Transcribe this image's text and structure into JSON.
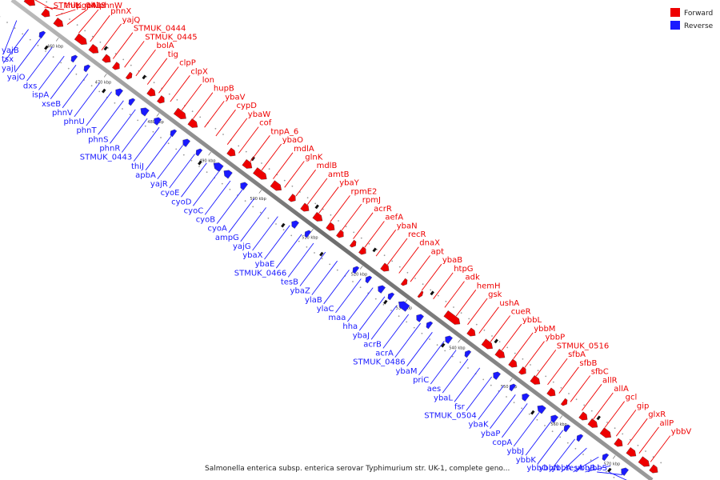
{
  "legend": {
    "forward_label": "Forward",
    "reverse_label": "Reverse"
  },
  "colors": {
    "forward": "#ee0000",
    "reverse": "#1a1aff",
    "backbone": "#8a8a8a"
  },
  "caption": "Salmonella enterica subsp. enterica serovar Typhimurium str. UK-1, complete geno...",
  "ticks": [
    "460 kbp",
    "470 kbp",
    "480 kbp",
    "490 kbp",
    "500 kbp",
    "510 kbp",
    "520 kbp",
    "530 kbp",
    "540 kbp",
    "550 kbp",
    "560 kbp",
    "570 kbp"
  ],
  "forward_genes": [
    "STMUK_0418",
    "thiL",
    "pgpA",
    "thiI",
    "phnW",
    "phnX",
    "yajQ",
    "STMUK_0444",
    "STMUK_0445",
    "bolA",
    "tig",
    "clpP",
    "clpX",
    "lon",
    "hupB",
    "ybaV",
    "cypD",
    "ybaW",
    "cof",
    "tnpA_6",
    "ybaO",
    "mdlA",
    "glnK",
    "mdlB",
    "amtB",
    "ybaY",
    "rpmE2",
    "rpmJ",
    "acrR",
    "aefA",
    "ybaN",
    "recR",
    "dnaX",
    "apt",
    "ybaB",
    "htpG",
    "adk",
    "hemH",
    "gsk",
    "ushA",
    "cueR",
    "ybbL",
    "ybbM",
    "ybbP",
    "STMUK_0516",
    "sfbA",
    "sfbB",
    "sfbC",
    "allR",
    "allA",
    "gcl",
    "gip",
    "glxR",
    "allP",
    "ybbV"
  ],
  "reverse_genes": [
    "yajB",
    "tsx",
    "yajI",
    "yajO",
    "dxs",
    "ispA",
    "xseB",
    "phnV",
    "phnU",
    "phnT",
    "phnS",
    "phnR",
    "STMUK_0443",
    "thiJ",
    "apbA",
    "yajR",
    "cyoE",
    "cyoD",
    "cyoC",
    "cyoB",
    "cyoA",
    "ampG",
    "yajG",
    "ybaX",
    "ybaE",
    "STMUK_0466",
    "tesB",
    "ybaZ",
    "ylaB",
    "ylaC",
    "maa",
    "hha",
    "ybaJ",
    "acrB",
    "acrA",
    "STMUK_0486",
    "ybaM",
    "priC",
    "aes",
    "ybaL",
    "fsr",
    "STMUK_0504",
    "ybaK",
    "ybaP",
    "copA",
    "ybbJ",
    "ybbK",
    "ybbO",
    "ybbN",
    "ybbA",
    "tesA",
    "ybbB",
    "ybbS"
  ]
}
